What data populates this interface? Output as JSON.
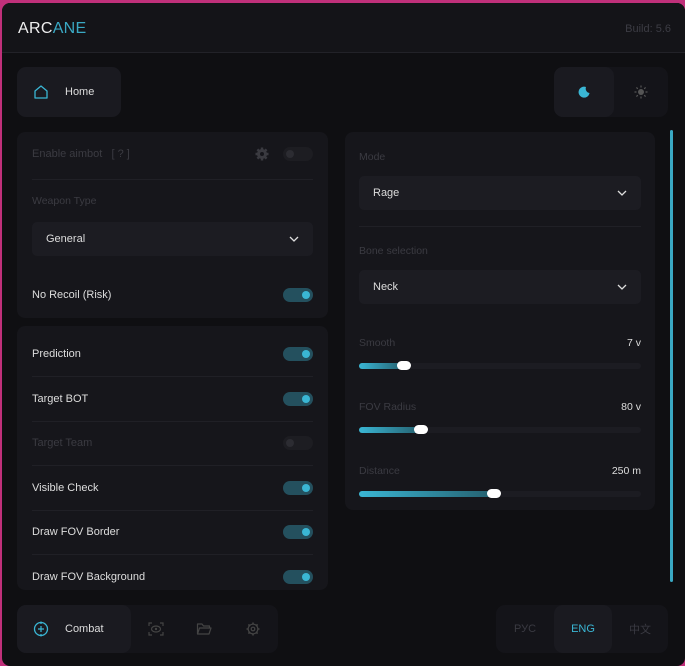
{
  "header": {
    "logo_a": "ARC",
    "logo_b": "ANE",
    "build": "Build: 5.6"
  },
  "top": {
    "home": "Home",
    "theme_active": "dark"
  },
  "left1": {
    "enable_aimbot": "Enable aimbot",
    "help": "[ ? ]",
    "enable_aimbot_on": false,
    "weapon_type_label": "Weapon Type",
    "weapon_type": "General",
    "no_recoil": "No Recoil (Risk)",
    "no_recoil_on": true
  },
  "left2": {
    "items": [
      {
        "label": "Prediction",
        "on": true
      },
      {
        "label": "Target BOT",
        "on": true
      },
      {
        "label": "Target Team",
        "on": false
      },
      {
        "label": "Visible Check",
        "on": true
      },
      {
        "label": "Draw FOV Border",
        "on": true
      },
      {
        "label": "Draw FOV Background",
        "on": true
      }
    ]
  },
  "right": {
    "mode_label": "Mode",
    "mode": "Rage",
    "bone_label": "Bone selection",
    "bone": "Neck",
    "sliders": [
      {
        "label": "Smooth",
        "value": "7 v",
        "percent": 16
      },
      {
        "label": "FOV Radius",
        "value": "80 v",
        "percent": 22
      },
      {
        "label": "Distance",
        "value": "250 m",
        "percent": 48
      }
    ]
  },
  "nav": {
    "combat": "Combat",
    "active": "combat",
    "icons": [
      "crosshair-icon",
      "eye-icon",
      "folder-icon",
      "gear-icon"
    ]
  },
  "lang": {
    "ru": "РУС",
    "en": "ENG",
    "zh": "中文",
    "active": "ENG"
  },
  "colors": {
    "accent": "#3ab6d4",
    "bg": "#0f0f12"
  }
}
